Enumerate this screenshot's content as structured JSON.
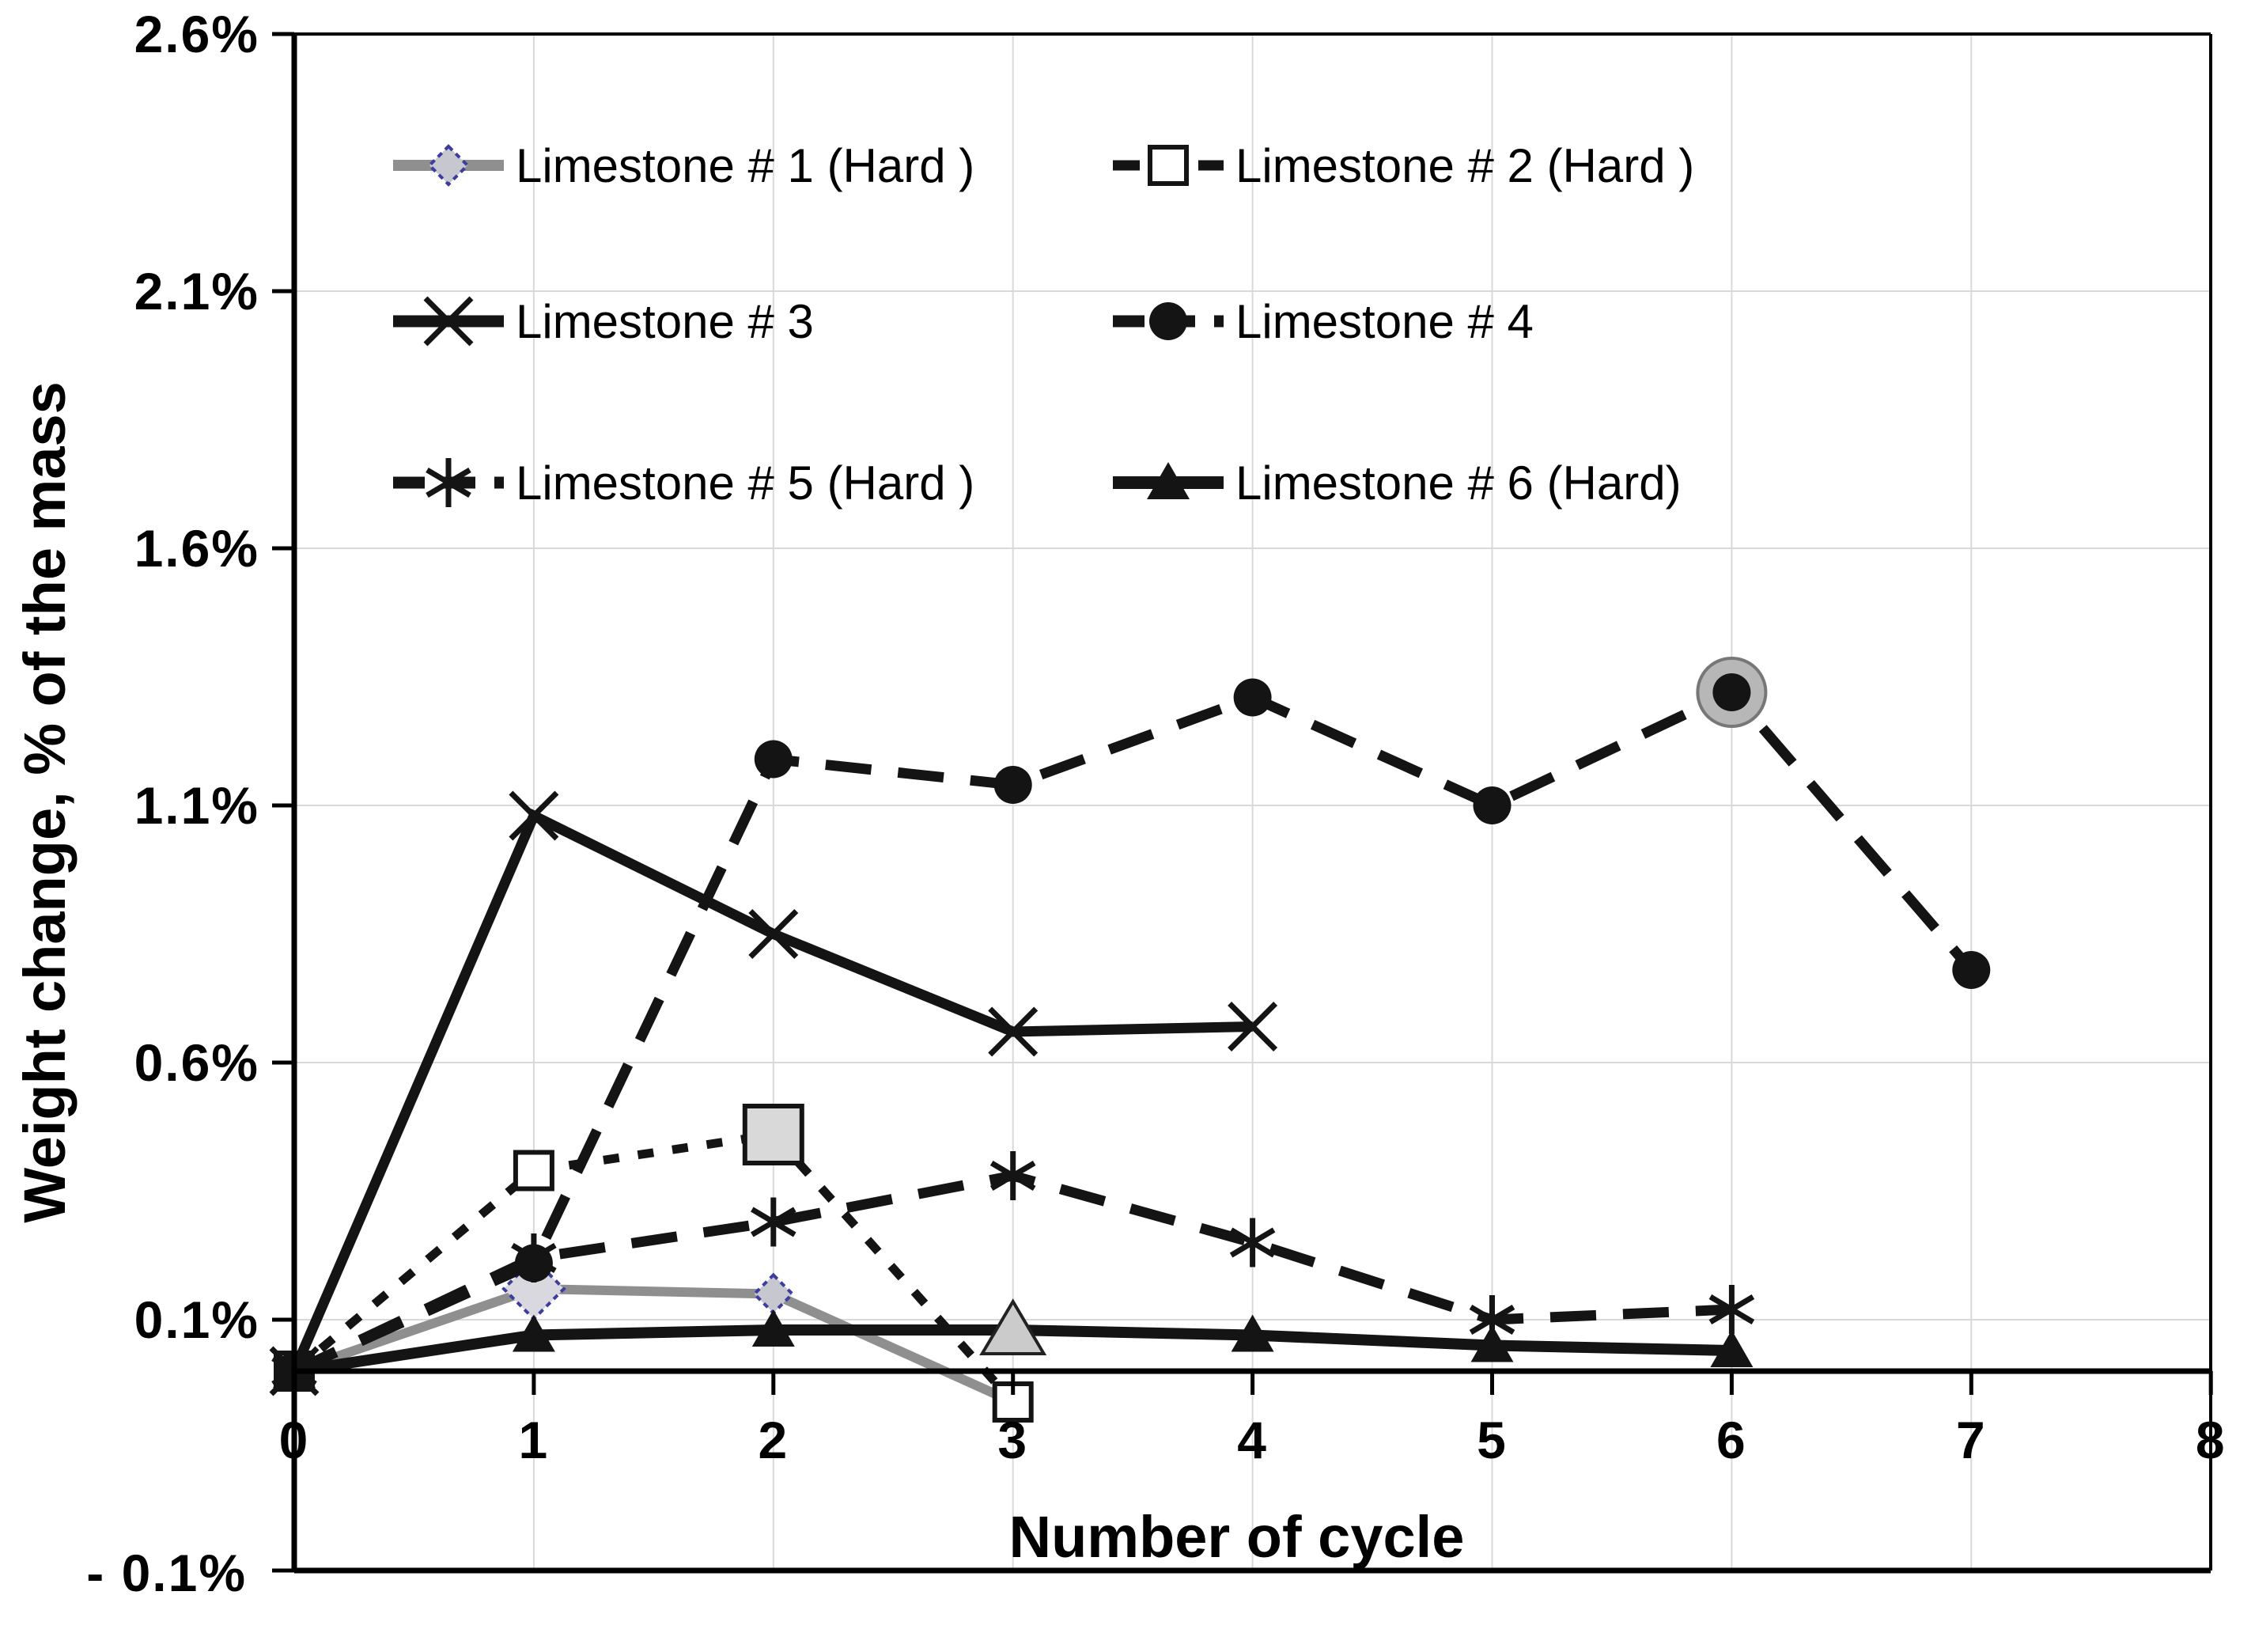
{
  "figure": {
    "kind": "scientific line chart",
    "background_color": "#ffffff",
    "gridline_color": "#d9d9d9",
    "axis_color": "#000000",
    "highlight_fill": "#c9c9c9"
  },
  "chart_data": {
    "type": "line",
    "title": "",
    "xlabel": "Number of cycle",
    "ylabel": "Weight change, % of the mass",
    "x_tick_labels": [
      "0",
      "1",
      "2",
      "3",
      "4",
      "5",
      "6",
      "7",
      "8"
    ],
    "x_range": [
      0,
      8
    ],
    "y_tick_labels": [
      "2.6%",
      "2.1%",
      "1.6%",
      "1.1%",
      "0.6%",
      "0.1%"
    ],
    "y_tick_values": [
      2.6,
      2.1,
      1.6,
      1.1,
      0.6,
      0.1
    ],
    "y_axis_bottom_label": "- 0.1%",
    "grid": true,
    "legend_position": "inside-top",
    "series": [
      {
        "name": "Limestone # 1 (Hard )",
        "marker": "diamond",
        "line_style": "solid",
        "line_color": "#8f8f8f",
        "line_width": 12,
        "marker_fill": "#c7c7cf",
        "marker_stroke": "#3d3da0",
        "x": [
          0,
          1,
          2,
          3
        ],
        "y": [
          0.0,
          0.16,
          0.15,
          -0.06
        ],
        "highlight_x": 1
      },
      {
        "name": "Limestone # 2 (Hard )",
        "marker": "open-square",
        "line_style": "dotted",
        "line_color": "#141414",
        "line_width": 11,
        "marker_fill": "#ffffff",
        "marker_stroke": "#141414",
        "x": [
          0,
          1,
          2,
          3
        ],
        "y": [
          0.0,
          0.39,
          0.46,
          -0.06
        ],
        "highlight_x": 2
      },
      {
        "name": "Limestone # 3",
        "marker": "cross",
        "line_style": "solid",
        "line_color": "#141414",
        "line_width": 13,
        "marker_fill": "none",
        "marker_stroke": "#141414",
        "x": [
          0,
          1,
          2,
          3,
          4
        ],
        "y": [
          0.0,
          1.08,
          0.85,
          0.66,
          0.67
        ],
        "highlight_x": null
      },
      {
        "name": "Limestone # 4",
        "marker": "filled-circle",
        "line_style": "dashed",
        "line_color": "#141414",
        "line_width": 13,
        "marker_fill": "#141414",
        "marker_stroke": "#141414",
        "x": [
          0,
          1,
          2,
          3,
          4,
          5,
          6,
          7
        ],
        "y": [
          0.0,
          0.21,
          1.19,
          1.14,
          1.31,
          1.1,
          1.32,
          0.78
        ],
        "highlight_x": 6
      },
      {
        "name": "Limestone # 5 (Hard )",
        "marker": "asterisk",
        "line_style": "dashed",
        "line_color": "#141414",
        "line_width": 13,
        "marker_fill": "none",
        "marker_stroke": "#141414",
        "x": [
          0,
          1,
          2,
          3,
          4,
          5,
          6
        ],
        "y": [
          0.0,
          0.22,
          0.29,
          0.38,
          0.25,
          0.1,
          0.12
        ],
        "highlight_x": null
      },
      {
        "name": "Limestone # 6 (Hard)",
        "marker": "filled-triangle",
        "line_style": "solid",
        "line_color": "#141414",
        "line_width": 14,
        "marker_fill": "#141414",
        "marker_stroke": "#141414",
        "x": [
          0,
          1,
          2,
          3,
          4,
          5,
          6
        ],
        "y": [
          0.0,
          0.07,
          0.08,
          0.08,
          0.07,
          0.05,
          0.04
        ],
        "highlight_x": 3
      }
    ]
  }
}
